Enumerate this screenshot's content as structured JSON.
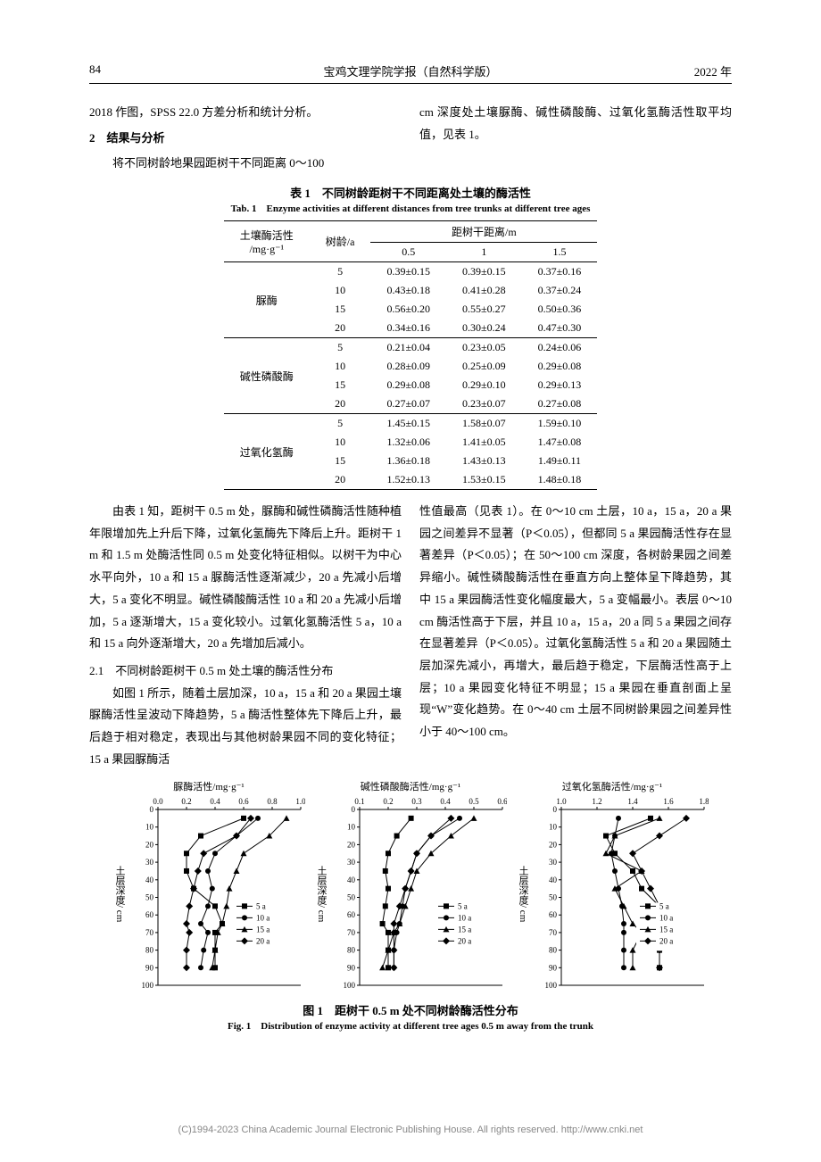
{
  "header": {
    "page": "84",
    "journal": "宝鸡文理学院学报（自然科学版）",
    "year": "2022 年"
  },
  "topLeftCol": {
    "p1": "2018 作图，SPSS 22.0 方差分析和统计分析。",
    "sec2": "2　结果与分析",
    "p2": "将不同树龄地果园距树干不同距离 0～100"
  },
  "topRightCol": {
    "p1": "cm 深度处土壤脲酶、碱性磷酸酶、过氧化氢酶活性取平均值，见表 1。"
  },
  "table": {
    "caption_cn": "表 1　不同树龄距树干不同距离处土壤的酶活性",
    "caption_en": "Tab. 1　Enzyme activities at different distances from tree trunks at different tree ages",
    "head1": "土壤酶活性",
    "head1_unit": "/mg·g⁻¹",
    "head2": "树龄/a",
    "head3": "距树干距离/m",
    "sub1": "0.5",
    "sub2": "1",
    "sub3": "1.5",
    "groups": [
      {
        "label": "脲酶",
        "rows": [
          {
            "age": "5",
            "d05": "0.39±0.15",
            "d1": "0.39±0.15",
            "d15": "0.37±0.16"
          },
          {
            "age": "10",
            "d05": "0.43±0.18",
            "d1": "0.41±0.28",
            "d15": "0.37±0.24"
          },
          {
            "age": "15",
            "d05": "0.56±0.20",
            "d1": "0.55±0.27",
            "d15": "0.50±0.36"
          },
          {
            "age": "20",
            "d05": "0.34±0.16",
            "d1": "0.30±0.24",
            "d15": "0.47±0.30"
          }
        ]
      },
      {
        "label": "碱性磷酸酶",
        "rows": [
          {
            "age": "5",
            "d05": "0.21±0.04",
            "d1": "0.23±0.05",
            "d15": "0.24±0.06"
          },
          {
            "age": "10",
            "d05": "0.28±0.09",
            "d1": "0.25±0.09",
            "d15": "0.29±0.08"
          },
          {
            "age": "15",
            "d05": "0.29±0.08",
            "d1": "0.29±0.10",
            "d15": "0.29±0.13"
          },
          {
            "age": "20",
            "d05": "0.27±0.07",
            "d1": "0.23±0.07",
            "d15": "0.27±0.08"
          }
        ]
      },
      {
        "label": "过氧化氢酶",
        "rows": [
          {
            "age": "5",
            "d05": "1.45±0.15",
            "d1": "1.58±0.07",
            "d15": "1.59±0.10"
          },
          {
            "age": "10",
            "d05": "1.32±0.06",
            "d1": "1.41±0.05",
            "d15": "1.47±0.08"
          },
          {
            "age": "15",
            "d05": "1.36±0.18",
            "d1": "1.43±0.13",
            "d15": "1.49±0.11"
          },
          {
            "age": "20",
            "d05": "1.52±0.13",
            "d1": "1.53±0.15",
            "d15": "1.48±0.18"
          }
        ]
      }
    ]
  },
  "midLeft": {
    "para1": "由表 1 知，距树干 0.5 m 处，脲酶和碱性磷酶活性随种植年限增加先上升后下降，过氧化氢酶先下降后上升。距树干 1 m 和 1.5 m 处酶活性同 0.5 m 处变化特征相似。以树干为中心水平向外，10 a 和 15 a 脲酶活性逐渐减少，20 a 先减小后增大，5 a 变化不明显。碱性磷酸酶活性 10 a 和 20 a 先减小后增加，5 a 逐渐增大，15 a 变化较小。过氧化氢酶活性 5 a，10 a 和 15 a 向外逐渐增大，20 a 先增加后减小。",
    "sec21": "2.1　不同树龄距树干 0.5 m 处土壤的酶活性分布",
    "para2": "如图 1 所示，随着土层加深，10 a，15 a 和 20 a 果园土壤脲酶活性呈波动下降趋势，5 a 酶活性整体先下降后上升，最后趋于相对稳定，表现出与其他树龄果园不同的变化特征；15 a 果园脲酶活"
  },
  "midRight": {
    "para1": "性值最高（见表 1）。在 0～10 cm 土层，10 a，15 a，20 a 果园之间差异不显著（P＜0.05），但都同 5 a 果园酶活性存在显著差异（P＜0.05）；在 50～100 cm 深度，各树龄果园之间差异缩小。碱性磷酸酶活性在垂直方向上整体呈下降趋势，其中 15 a 果园酶活性变化幅度最大，5 a 变幅最小。表层 0～10 cm 酶活性高于下层，并且 10 a，15 a，20 a 同 5 a 果园之间存在显著差异（P＜0.05）。过氧化氢酶活性 5 a 和 20 a 果园随土层加深先减小，再增大，最后趋于稳定，下层酶活性高于上层；10 a 果园变化特征不明显；15 a 果园在垂直剖面上呈现“W”变化趋势。在 0～40 cm 土层不同树龄果园之间差异性小于 40～100 cm。"
  },
  "charts": {
    "ylabel": "土层深度/ cm",
    "legend": [
      "5 a",
      "10 a",
      "15 a",
      "20 a"
    ],
    "markers": [
      "square",
      "circle",
      "triangle",
      "diamond"
    ],
    "colors": "#000000",
    "depths": [
      0,
      10,
      20,
      30,
      40,
      50,
      60,
      70,
      80,
      90,
      100
    ],
    "panels": [
      {
        "title": "脲酶活性/mg·g⁻¹",
        "xmin": 0.0,
        "xmax": 1.0,
        "xticks": [
          0.0,
          0.2,
          0.4,
          0.6,
          0.8,
          1.0
        ],
        "series": {
          "5a": [
            0.6,
            0.3,
            0.2,
            0.2,
            0.25,
            0.4,
            0.45,
            0.4,
            0.4,
            0.4
          ],
          "10a": [
            0.7,
            0.55,
            0.4,
            0.35,
            0.38,
            0.35,
            0.3,
            0.35,
            0.32,
            0.3
          ],
          "15a": [
            0.9,
            0.78,
            0.6,
            0.55,
            0.5,
            0.48,
            0.45,
            0.42,
            0.4,
            0.38
          ],
          "20a": [
            0.65,
            0.55,
            0.32,
            0.28,
            0.25,
            0.22,
            0.2,
            0.22,
            0.2,
            0.2
          ]
        }
      },
      {
        "title": "碱性磷酸酶活性/mg·g⁻¹",
        "xmin": 0.1,
        "xmax": 0.6,
        "xticks": [
          0.1,
          0.2,
          0.3,
          0.4,
          0.5,
          0.6
        ],
        "series": {
          "5a": [
            0.28,
            0.23,
            0.2,
            0.19,
            0.2,
            0.19,
            0.18,
            0.2,
            0.2,
            0.2
          ],
          "10a": [
            0.45,
            0.35,
            0.3,
            0.28,
            0.26,
            0.25,
            0.24,
            0.23,
            0.22,
            0.22
          ],
          "15a": [
            0.5,
            0.42,
            0.35,
            0.3,
            0.28,
            0.26,
            0.24,
            0.22,
            0.2,
            0.18
          ],
          "20a": [
            0.42,
            0.35,
            0.3,
            0.28,
            0.26,
            0.24,
            0.22,
            0.22,
            0.22,
            0.22
          ]
        }
      },
      {
        "title": "过氧化氢酶活性/mg·g⁻¹",
        "xmin": 1.0,
        "xmax": 1.8,
        "xticks": [
          1.0,
          1.2,
          1.4,
          1.6,
          1.8
        ],
        "series": {
          "5a": [
            1.5,
            1.25,
            1.3,
            1.4,
            1.45,
            1.55,
            1.55,
            1.55,
            1.55,
            1.55
          ],
          "10a": [
            1.32,
            1.3,
            1.28,
            1.3,
            1.32,
            1.34,
            1.35,
            1.35,
            1.35,
            1.35
          ],
          "15a": [
            1.55,
            1.3,
            1.25,
            1.45,
            1.3,
            1.35,
            1.4,
            1.45,
            1.4,
            1.4
          ],
          "20a": [
            1.7,
            1.55,
            1.4,
            1.45,
            1.5,
            1.55,
            1.58,
            1.58,
            1.55,
            1.55
          ]
        }
      }
    ]
  },
  "fig": {
    "caption_cn": "图 1　距树干 0.5 m 处不同树龄酶活性分布",
    "caption_en": "Fig. 1　Distribution of enzyme activity at different tree ages 0.5 m away from the trunk"
  },
  "footer": "(C)1994-2023 China Academic Journal Electronic Publishing House. All rights reserved.    http://www.cnki.net"
}
